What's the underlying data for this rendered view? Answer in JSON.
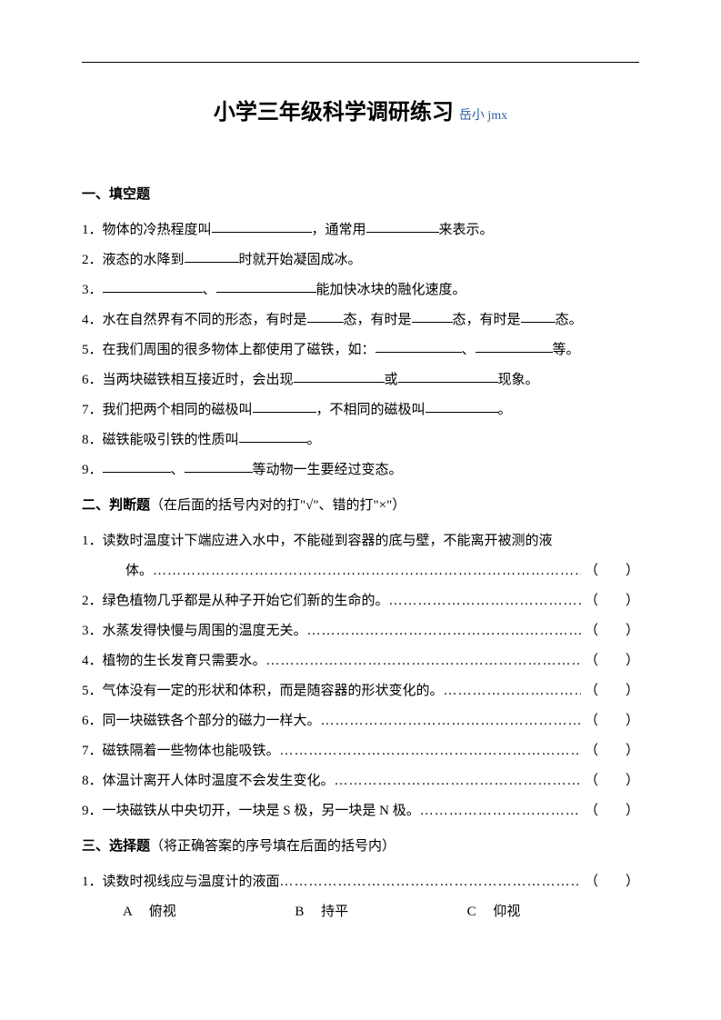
{
  "colors": {
    "text": "#000000",
    "subtitle": "#2e5fa3",
    "background": "#ffffff"
  },
  "title": {
    "main": "小学三年级科学调研练习",
    "sub": "岳小 jmx"
  },
  "section1": {
    "heading": "一、填空题",
    "items": [
      {
        "num": "1．",
        "parts": [
          "物体的冷热程度叫",
          {
            "blank": 110
          },
          "，通常用",
          {
            "blank": 80
          },
          "来表示。"
        ]
      },
      {
        "num": "2．",
        "parts": [
          "液态的水降到",
          {
            "blank": 60
          },
          "时就开始凝固成冰。"
        ]
      },
      {
        "num": "3．",
        "parts": [
          {
            "blank": 110
          },
          "、",
          {
            "blank": 110
          },
          "能加快冰块的融化速度。"
        ]
      },
      {
        "num": "4．",
        "parts": [
          "水在自然界有不同的形态，有时是",
          {
            "blank": 40
          },
          "态，有时是",
          {
            "blank": 45
          },
          "态，有时是",
          {
            "blank": 38
          },
          "态。"
        ]
      },
      {
        "num": "5．",
        "parts": [
          "在我们周围的很多物体上都使用了磁铁，如：",
          {
            "blank": 95
          },
          "、",
          {
            "blank": 85
          },
          "等。"
        ]
      },
      {
        "num": "6．",
        "parts": [
          "当两块磁铁相互接近时，会出现",
          {
            "blank": 100
          },
          "或",
          {
            "blank": 110
          },
          "现象。"
        ]
      },
      {
        "num": "7．",
        "parts": [
          "我们把两个相同的磁极叫",
          {
            "blank": 70
          },
          "，不相同的磁极叫",
          {
            "blank": 80
          },
          "。"
        ]
      },
      {
        "num": "8．",
        "parts": [
          "磁铁能吸引铁的性质叫",
          {
            "blank": 75
          },
          "。"
        ]
      },
      {
        "num": "9．",
        "parts": [
          {
            "blank": 75
          },
          "、",
          {
            "blank": 75
          },
          "等动物一生要经过变态。"
        ]
      }
    ]
  },
  "section2": {
    "heading": "二、判断题",
    "heading_note": "（在后面的括号内对的打\"√\"、错的打\"×\"）",
    "paren": "（　　）",
    "items": [
      {
        "num": "1．",
        "text_line1": "读数时温度计下端应进入水中，不能碰到容器的底与壁，不能离开被测的液",
        "text_line2": "体。"
      },
      {
        "num": "2．",
        "text": "绿色植物几乎都是从种子开始它们新的生命的。"
      },
      {
        "num": "3．",
        "text": "水蒸发得快慢与周围的温度无关。"
      },
      {
        "num": "4．",
        "text": "植物的生长发育只需要水。"
      },
      {
        "num": "5．",
        "text": "气体没有一定的形状和体积，而是随容器的形状变化的。"
      },
      {
        "num": "6．",
        "text": "同一块磁铁各个部分的磁力一样大。"
      },
      {
        "num": "7．",
        "text": "磁铁隔着一些物体也能吸铁。"
      },
      {
        "num": "8．",
        "text": "体温计离开人体时温度不会发生变化。"
      },
      {
        "num": "9．",
        "text": "一块磁铁从中央切开，一块是 S 极，另一块是 N 极。"
      }
    ]
  },
  "section3": {
    "heading": "三、选择题",
    "heading_note": "（将正确答案的序号填在后面的括号内）",
    "paren": "（　　）",
    "q1": {
      "num": "1．",
      "text": "读数时视线应与温度计的液面"
    },
    "choices": [
      {
        "letter": "A",
        "text": "俯视"
      },
      {
        "letter": "B",
        "text": "持平"
      },
      {
        "letter": "C",
        "text": "仰视"
      }
    ]
  },
  "dots": "…………………………………………………………………………………………………………"
}
